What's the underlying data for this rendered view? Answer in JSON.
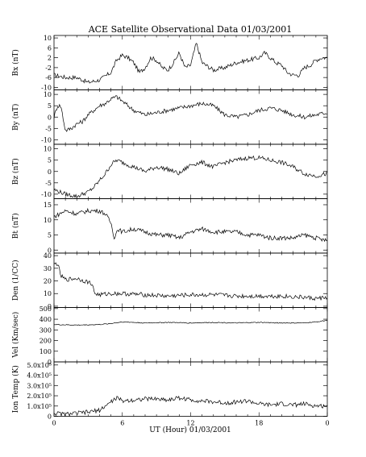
{
  "title": "ACE Satellite Observational Data   01/03/2001",
  "xlabel": "UT (Hour)  01/03/2001",
  "x_ticks": [
    "0",
    "6",
    "12",
    "18",
    "0"
  ],
  "chart_data": [
    {
      "type": "line",
      "ylabel": "Bx (nT)",
      "ylim": [
        -11,
        11
      ],
      "yticks": [
        "10",
        "6",
        "2",
        "-2",
        "-6",
        "-10"
      ],
      "ytick_values": [
        10,
        6,
        2,
        -2,
        -6,
        -10
      ],
      "x": [
        0,
        1,
        2,
        3,
        4,
        5,
        5.5,
        6,
        6.5,
        7,
        7.5,
        8,
        8.5,
        9,
        9.5,
        10,
        10.5,
        11,
        11.5,
        12,
        12.5,
        13,
        14,
        15,
        16,
        17,
        18,
        18.5,
        19,
        19.5,
        20,
        20.5,
        21,
        21.5,
        22,
        22.5,
        23,
        23.5,
        24
      ],
      "values": [
        -5,
        -6,
        -6,
        -8,
        -7,
        -4,
        1,
        3,
        2,
        0,
        -4,
        -2,
        2,
        1,
        -2,
        -3,
        0,
        4,
        -2,
        -1,
        8,
        0,
        -3,
        -2,
        0,
        1,
        2,
        4,
        2,
        0,
        -1,
        -4,
        -5,
        -5,
        -2,
        -1,
        1,
        2,
        2
      ]
    },
    {
      "type": "line",
      "ylabel": "By (nT)",
      "ylim": [
        -12,
        12
      ],
      "yticks": [
        "10",
        "5",
        "0",
        "-5",
        "-10"
      ],
      "ytick_values": [
        10,
        5,
        0,
        -5,
        -10
      ],
      "x": [
        0,
        0.3,
        0.6,
        1,
        1.5,
        2,
        2.5,
        3,
        3.5,
        4,
        4.5,
        5,
        5.5,
        6,
        7,
        8,
        9,
        10,
        11,
        12,
        13,
        14,
        15,
        16,
        17,
        18,
        19,
        20,
        21,
        22,
        23,
        24
      ],
      "values": [
        0,
        5,
        5,
        -6,
        -5,
        -3,
        -2,
        1,
        3,
        5,
        6,
        8,
        9,
        7,
        3,
        1,
        2,
        3,
        4,
        5,
        6,
        5,
        1,
        0,
        1,
        3,
        4,
        3,
        1,
        0,
        1,
        2
      ]
    },
    {
      "type": "line",
      "ylabel": "Bz (nT)",
      "ylim": [
        -12,
        12
      ],
      "yticks": [
        "10",
        "5",
        "0",
        "-5",
        "-10"
      ],
      "ytick_values": [
        10,
        5,
        0,
        -5,
        -10
      ],
      "x": [
        0,
        1,
        2,
        3,
        3.5,
        4,
        4.5,
        5,
        5.5,
        6,
        7,
        8,
        9,
        10,
        11,
        12,
        13,
        14,
        15,
        16,
        17,
        18,
        19,
        20,
        21,
        22,
        23,
        24
      ],
      "values": [
        -8,
        -10,
        -11,
        -9,
        -7,
        -4,
        -1,
        3,
        5,
        4,
        2,
        0,
        2,
        1,
        -1,
        3,
        4,
        2,
        4,
        5,
        6,
        6,
        5,
        4,
        2,
        -1,
        -2,
        -1
      ]
    },
    {
      "type": "line",
      "ylabel": "Bt (nT)",
      "ylim": [
        -1,
        17
      ],
      "yticks": [
        "15",
        "10",
        "5",
        "0"
      ],
      "ytick_values": [
        15,
        10,
        5,
        0
      ],
      "x": [
        0,
        0.5,
        1,
        2,
        3,
        4,
        4.5,
        5,
        5.3,
        5.6,
        6,
        7,
        8,
        9,
        10,
        11,
        12,
        13,
        14,
        15,
        16,
        17,
        18,
        19,
        20,
        21,
        22,
        23,
        24
      ],
      "values": [
        11,
        12,
        13,
        12,
        13,
        13,
        12,
        9,
        4,
        7,
        6,
        7,
        6,
        5,
        5,
        4,
        6,
        7,
        6,
        6,
        6,
        5,
        5,
        4,
        4,
        4,
        5,
        4,
        3
      ]
    },
    {
      "type": "line",
      "ylabel": "Den (1/CC)",
      "ylim": [
        -1,
        42
      ],
      "yticks": [
        "40",
        "30",
        "20",
        "10",
        "0"
      ],
      "ytick_values": [
        40,
        30,
        20,
        10,
        0
      ],
      "x": [
        0,
        0.3,
        0.6,
        1,
        2,
        3,
        3.3,
        3.6,
        4,
        5,
        6,
        8,
        10,
        12,
        14,
        16,
        18,
        20,
        22,
        23,
        24
      ],
      "values": [
        33,
        34,
        24,
        21,
        22,
        19,
        18,
        10,
        9,
        10,
        10,
        9,
        8,
        9,
        9,
        8,
        8,
        8,
        7,
        6,
        7
      ]
    },
    {
      "type": "line",
      "ylabel": "Vel (Km/sec)",
      "ylim": [
        0,
        510
      ],
      "yticks": [
        "500",
        "400",
        "300",
        "200",
        "100",
        "0"
      ],
      "ytick_values": [
        500,
        400,
        300,
        200,
        100,
        0
      ],
      "x": [
        0,
        2,
        4,
        5,
        6,
        8,
        10,
        12,
        14,
        16,
        18,
        20,
        22,
        23,
        24
      ],
      "values": [
        350,
        345,
        350,
        360,
        375,
        365,
        370,
        365,
        370,
        365,
        370,
        365,
        365,
        375,
        390
      ]
    },
    {
      "type": "line",
      "ylabel": "Ion Temp (K)",
      "ylim": [
        0,
        530000
      ],
      "yticks": [
        "5.0x10⁵",
        "4.0x10⁵",
        "3.0x10⁵",
        "2.0x10⁵",
        "1.0x10⁵",
        "0"
      ],
      "ytick_values": [
        500000,
        400000,
        300000,
        200000,
        100000,
        0
      ],
      "x": [
        0,
        1,
        2,
        3,
        4,
        4.5,
        5,
        5.5,
        6,
        7,
        8,
        9,
        10,
        11,
        12,
        13,
        14,
        15,
        16,
        17,
        18,
        19,
        20,
        21,
        22,
        23,
        24
      ],
      "values": [
        30000,
        20000,
        30000,
        40000,
        60000,
        100000,
        140000,
        180000,
        150000,
        160000,
        170000,
        170000,
        160000,
        180000,
        160000,
        150000,
        140000,
        130000,
        140000,
        150000,
        120000,
        110000,
        120000,
        110000,
        120000,
        100000,
        100000
      ]
    }
  ]
}
